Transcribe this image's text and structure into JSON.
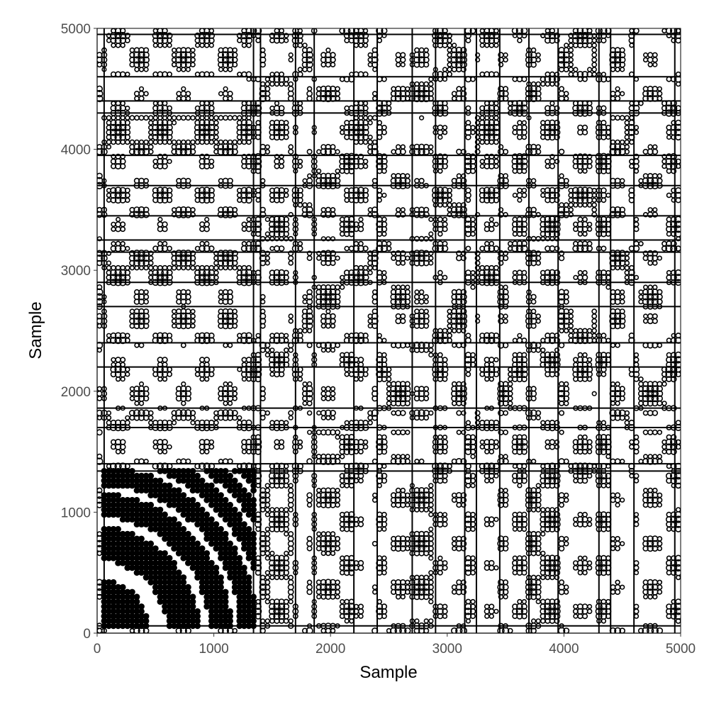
{
  "chart_data": {
    "type": "heatmap",
    "title": "",
    "xlabel": "Sample",
    "ylabel": "Sample",
    "xlim": [
      0,
      5000
    ],
    "ylim": [
      0,
      5000
    ],
    "x_ticks": [
      0,
      1000,
      2000,
      3000,
      4000,
      5000
    ],
    "y_ticks": [
      0,
      1000,
      2000,
      3000,
      4000,
      5000
    ],
    "x_tick_labels": [
      "0",
      "1000",
      "2000",
      "3000",
      "4000",
      "5000"
    ],
    "y_tick_labels": [
      "0",
      "1000",
      "2000",
      "3000",
      "4000",
      "5000"
    ],
    "grid": false,
    "legend": "none",
    "colors": {
      "recurrent": "#000000",
      "non_recurrent": "#ffffff"
    },
    "symmetric": true,
    "segment_boundaries": [
      0,
      60,
      1340,
      1400,
      1700,
      1860,
      2200,
      2400,
      2700,
      2900,
      3150,
      3250,
      3450,
      3700,
      3950,
      4300,
      4400,
      4600,
      4950,
      5000
    ],
    "dense_block": {
      "x_range": [
        60,
        1340
      ],
      "y_range": [
        60,
        1340
      ]
    }
  }
}
